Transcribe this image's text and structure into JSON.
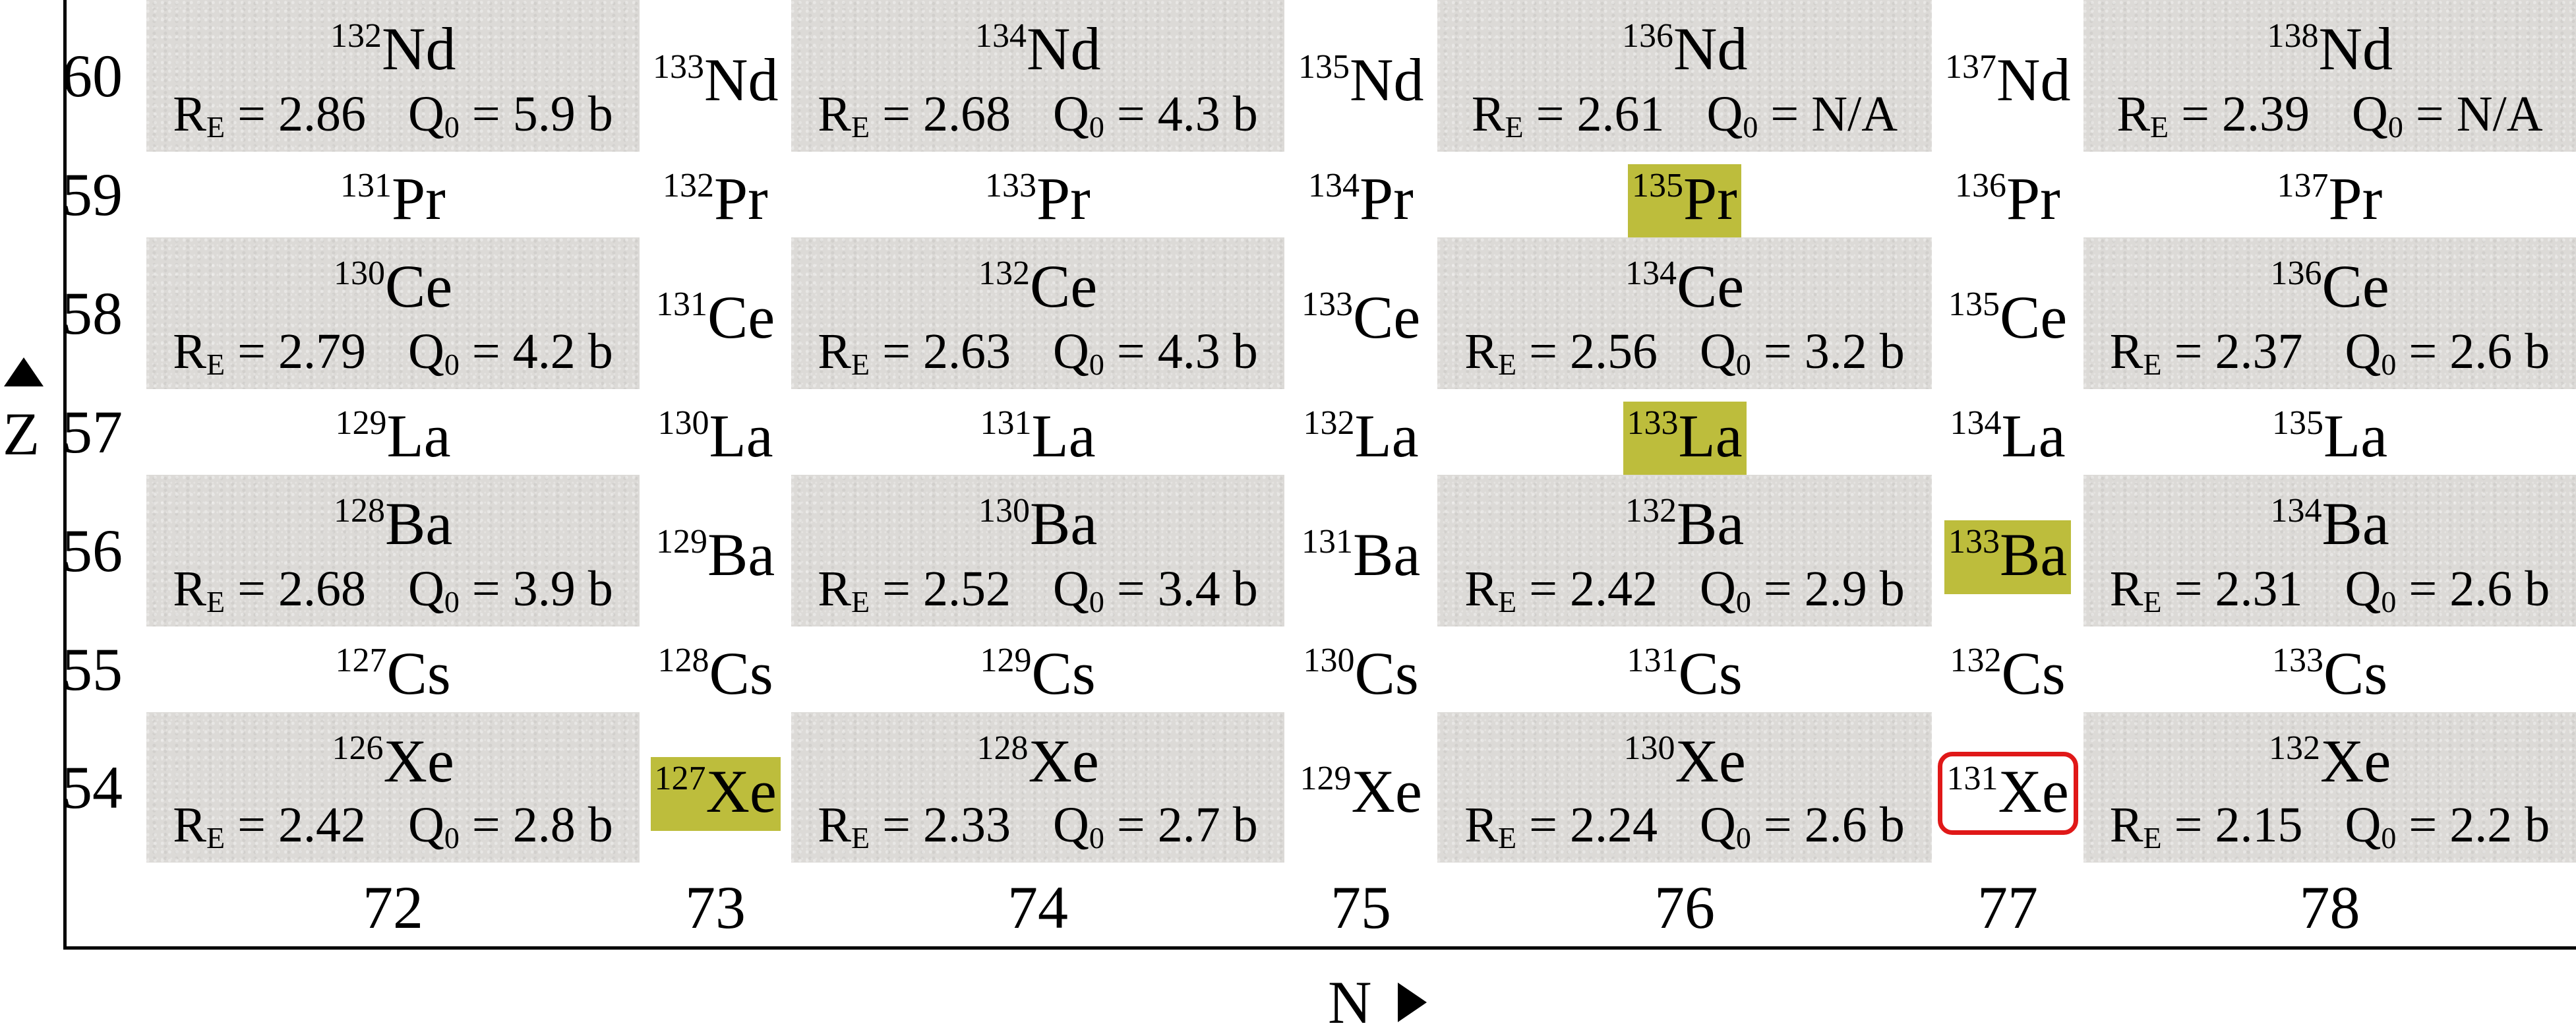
{
  "axes": {
    "z_title": "Z",
    "n_title": "N"
  },
  "z_labels": [
    "60",
    "59",
    "58",
    "57",
    "56",
    "55",
    "54"
  ],
  "n_labels": [
    "72",
    "73",
    "74",
    "75",
    "76",
    "77",
    "78"
  ],
  "re_symbol": "R",
  "re_sub": "E",
  "q_symbol": "Q",
  "q_sub": "0",
  "cells": [
    {
      "z": 60,
      "n": 72,
      "mass": "132",
      "sym": "Nd",
      "ee": true,
      "re": "2.86",
      "q0": "5.9 b"
    },
    {
      "z": 60,
      "n": 73,
      "mass": "133",
      "sym": "Nd",
      "ee": false
    },
    {
      "z": 60,
      "n": 74,
      "mass": "134",
      "sym": "Nd",
      "ee": true,
      "re": "2.68",
      "q0": "4.3 b"
    },
    {
      "z": 60,
      "n": 75,
      "mass": "135",
      "sym": "Nd",
      "ee": false
    },
    {
      "z": 60,
      "n": 76,
      "mass": "136",
      "sym": "Nd",
      "ee": true,
      "re": "2.61",
      "q0": "N/A"
    },
    {
      "z": 60,
      "n": 77,
      "mass": "137",
      "sym": "Nd",
      "ee": false
    },
    {
      "z": 60,
      "n": 78,
      "mass": "138",
      "sym": "Nd",
      "ee": true,
      "re": "2.39",
      "q0": "N/A"
    },
    {
      "z": 59,
      "n": 72,
      "mass": "131",
      "sym": "Pr",
      "ee": false
    },
    {
      "z": 59,
      "n": 73,
      "mass": "132",
      "sym": "Pr",
      "ee": false
    },
    {
      "z": 59,
      "n": 74,
      "mass": "133",
      "sym": "Pr",
      "ee": false
    },
    {
      "z": 59,
      "n": 75,
      "mass": "134",
      "sym": "Pr",
      "ee": false
    },
    {
      "z": 59,
      "n": 76,
      "mass": "135",
      "sym": "Pr",
      "ee": false,
      "highlight": true
    },
    {
      "z": 59,
      "n": 77,
      "mass": "136",
      "sym": "Pr",
      "ee": false
    },
    {
      "z": 59,
      "n": 78,
      "mass": "137",
      "sym": "Pr",
      "ee": false
    },
    {
      "z": 58,
      "n": 72,
      "mass": "130",
      "sym": "Ce",
      "ee": true,
      "re": "2.79",
      "q0": "4.2 b"
    },
    {
      "z": 58,
      "n": 73,
      "mass": "131",
      "sym": "Ce",
      "ee": false
    },
    {
      "z": 58,
      "n": 74,
      "mass": "132",
      "sym": "Ce",
      "ee": true,
      "re": "2.63",
      "q0": "4.3 b"
    },
    {
      "z": 58,
      "n": 75,
      "mass": "133",
      "sym": "Ce",
      "ee": false
    },
    {
      "z": 58,
      "n": 76,
      "mass": "134",
      "sym": "Ce",
      "ee": true,
      "re": "2.56",
      "q0": "3.2 b"
    },
    {
      "z": 58,
      "n": 77,
      "mass": "135",
      "sym": "Ce",
      "ee": false
    },
    {
      "z": 58,
      "n": 78,
      "mass": "136",
      "sym": "Ce",
      "ee": true,
      "re": "2.37",
      "q0": "2.6 b"
    },
    {
      "z": 57,
      "n": 72,
      "mass": "129",
      "sym": "La",
      "ee": false
    },
    {
      "z": 57,
      "n": 73,
      "mass": "130",
      "sym": "La",
      "ee": false
    },
    {
      "z": 57,
      "n": 74,
      "mass": "131",
      "sym": "La",
      "ee": false
    },
    {
      "z": 57,
      "n": 75,
      "mass": "132",
      "sym": "La",
      "ee": false
    },
    {
      "z": 57,
      "n": 76,
      "mass": "133",
      "sym": "La",
      "ee": false,
      "highlight": true
    },
    {
      "z": 57,
      "n": 77,
      "mass": "134",
      "sym": "La",
      "ee": false
    },
    {
      "z": 57,
      "n": 78,
      "mass": "135",
      "sym": "La",
      "ee": false
    },
    {
      "z": 56,
      "n": 72,
      "mass": "128",
      "sym": "Ba",
      "ee": true,
      "re": "2.68",
      "q0": "3.9 b"
    },
    {
      "z": 56,
      "n": 73,
      "mass": "129",
      "sym": "Ba",
      "ee": false
    },
    {
      "z": 56,
      "n": 74,
      "mass": "130",
      "sym": "Ba",
      "ee": true,
      "re": "2.52",
      "q0": "3.4 b"
    },
    {
      "z": 56,
      "n": 75,
      "mass": "131",
      "sym": "Ba",
      "ee": false
    },
    {
      "z": 56,
      "n": 76,
      "mass": "132",
      "sym": "Ba",
      "ee": true,
      "re": "2.42",
      "q0": "2.9 b"
    },
    {
      "z": 56,
      "n": 77,
      "mass": "133",
      "sym": "Ba",
      "ee": false,
      "highlight": true
    },
    {
      "z": 56,
      "n": 78,
      "mass": "134",
      "sym": "Ba",
      "ee": true,
      "re": "2.31",
      "q0": "2.6 b"
    },
    {
      "z": 55,
      "n": 72,
      "mass": "127",
      "sym": "Cs",
      "ee": false
    },
    {
      "z": 55,
      "n": 73,
      "mass": "128",
      "sym": "Cs",
      "ee": false
    },
    {
      "z": 55,
      "n": 74,
      "mass": "129",
      "sym": "Cs",
      "ee": false
    },
    {
      "z": 55,
      "n": 75,
      "mass": "130",
      "sym": "Cs",
      "ee": false
    },
    {
      "z": 55,
      "n": 76,
      "mass": "131",
      "sym": "Cs",
      "ee": false
    },
    {
      "z": 55,
      "n": 77,
      "mass": "132",
      "sym": "Cs",
      "ee": false
    },
    {
      "z": 55,
      "n": 78,
      "mass": "133",
      "sym": "Cs",
      "ee": false
    },
    {
      "z": 54,
      "n": 72,
      "mass": "126",
      "sym": "Xe",
      "ee": true,
      "re": "2.42",
      "q0": "2.8 b"
    },
    {
      "z": 54,
      "n": 73,
      "mass": "127",
      "sym": "Xe",
      "ee": false,
      "highlight": true
    },
    {
      "z": 54,
      "n": 74,
      "mass": "128",
      "sym": "Xe",
      "ee": true,
      "re": "2.33",
      "q0": "2.7 b"
    },
    {
      "z": 54,
      "n": 75,
      "mass": "129",
      "sym": "Xe",
      "ee": false
    },
    {
      "z": 54,
      "n": 76,
      "mass": "130",
      "sym": "Xe",
      "ee": true,
      "re": "2.24",
      "q0": "2.6 b"
    },
    {
      "z": 54,
      "n": 77,
      "mass": "131",
      "sym": "Xe",
      "ee": false,
      "circled": true
    },
    {
      "z": 54,
      "n": 78,
      "mass": "132",
      "sym": "Xe",
      "ee": true,
      "re": "2.15",
      "q0": "2.2 b"
    }
  ],
  "colors": {
    "highlight": "#bdbd3c",
    "circle": "#e01818",
    "even_even_bg": "#dcdad7"
  }
}
